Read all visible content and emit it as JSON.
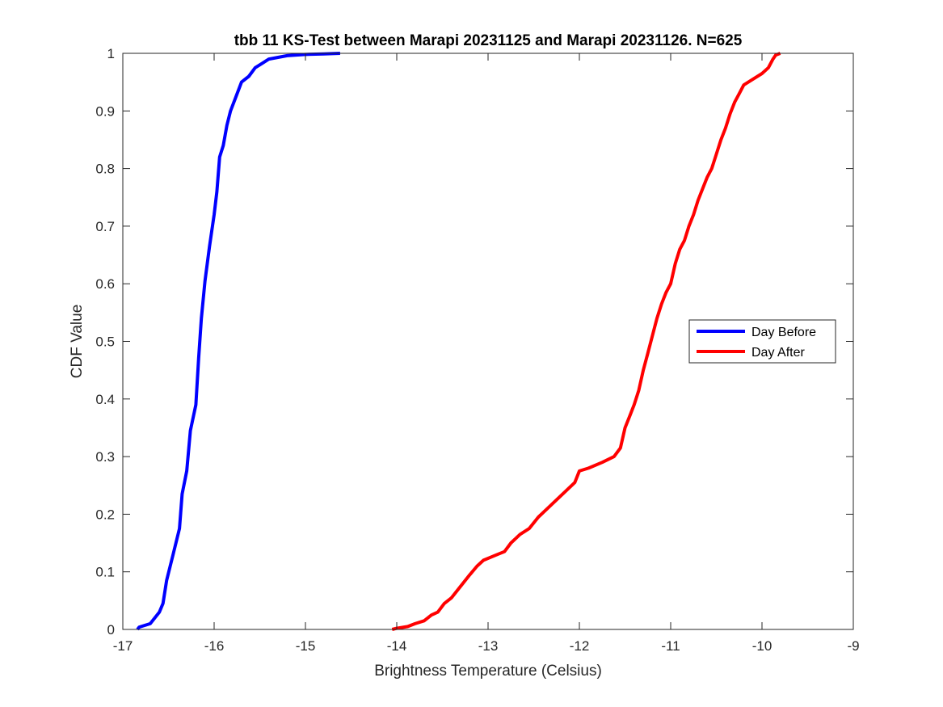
{
  "chart_data": {
    "type": "line",
    "title": "tbb 11 KS-Test between Marapi 20231125 and Marapi 20231126. N=625",
    "xlabel": "Brightness Temperature (Celsius)",
    "ylabel": "CDF Value",
    "xlim": [
      -17,
      -9
    ],
    "ylim": [
      0,
      1
    ],
    "xticks": [
      -17,
      -16,
      -15,
      -14,
      -13,
      -12,
      -11,
      -10,
      -9
    ],
    "yticks": [
      0,
      0.1,
      0.2,
      0.3,
      0.4,
      0.5,
      0.6,
      0.7,
      0.8,
      0.9,
      1
    ],
    "xtick_labels": [
      "-17",
      "-16",
      "-15",
      "-14",
      "-13",
      "-12",
      "-11",
      "-10",
      "-9"
    ],
    "ytick_labels": [
      "0",
      "0.1",
      "0.2",
      "0.3",
      "0.4",
      "0.5",
      "0.6",
      "0.7",
      "0.8",
      "0.9",
      "1"
    ],
    "grid": false,
    "legend_position": "center-right",
    "series": [
      {
        "name": "Day Before",
        "color": "#0000ff",
        "points": [
          [
            -16.84,
            0.0
          ],
          [
            -16.82,
            0.004
          ],
          [
            -16.7,
            0.01
          ],
          [
            -16.6,
            0.03
          ],
          [
            -16.56,
            0.045
          ],
          [
            -16.52,
            0.085
          ],
          [
            -16.45,
            0.13
          ],
          [
            -16.38,
            0.175
          ],
          [
            -16.35,
            0.235
          ],
          [
            -16.3,
            0.275
          ],
          [
            -16.26,
            0.345
          ],
          [
            -16.2,
            0.39
          ],
          [
            -16.17,
            0.47
          ],
          [
            -16.14,
            0.54
          ],
          [
            -16.1,
            0.605
          ],
          [
            -16.05,
            0.665
          ],
          [
            -16.0,
            0.72
          ],
          [
            -15.97,
            0.76
          ],
          [
            -15.94,
            0.82
          ],
          [
            -15.9,
            0.84
          ],
          [
            -15.86,
            0.875
          ],
          [
            -15.82,
            0.9
          ],
          [
            -15.76,
            0.925
          ],
          [
            -15.7,
            0.95
          ],
          [
            -15.62,
            0.96
          ],
          [
            -15.55,
            0.975
          ],
          [
            -15.48,
            0.982
          ],
          [
            -15.4,
            0.99
          ],
          [
            -15.2,
            0.996
          ],
          [
            -15.0,
            0.998
          ],
          [
            -14.8,
            0.999
          ],
          [
            -14.62,
            1.0
          ]
        ]
      },
      {
        "name": "Day After",
        "color": "#ff0000",
        "points": [
          [
            -14.05,
            0.0
          ],
          [
            -14.0,
            0.002
          ],
          [
            -13.88,
            0.005
          ],
          [
            -13.8,
            0.01
          ],
          [
            -13.7,
            0.015
          ],
          [
            -13.62,
            0.025
          ],
          [
            -13.55,
            0.03
          ],
          [
            -13.48,
            0.045
          ],
          [
            -13.4,
            0.055
          ],
          [
            -13.3,
            0.075
          ],
          [
            -13.2,
            0.095
          ],
          [
            -13.12,
            0.11
          ],
          [
            -13.05,
            0.12
          ],
          [
            -12.9,
            0.13
          ],
          [
            -12.82,
            0.135
          ],
          [
            -12.75,
            0.15
          ],
          [
            -12.65,
            0.165
          ],
          [
            -12.55,
            0.175
          ],
          [
            -12.45,
            0.195
          ],
          [
            -12.35,
            0.21
          ],
          [
            -12.25,
            0.225
          ],
          [
            -12.15,
            0.24
          ],
          [
            -12.05,
            0.255
          ],
          [
            -12.0,
            0.275
          ],
          [
            -11.9,
            0.28
          ],
          [
            -11.75,
            0.29
          ],
          [
            -11.62,
            0.3
          ],
          [
            -11.55,
            0.315
          ],
          [
            -11.5,
            0.35
          ],
          [
            -11.45,
            0.37
          ],
          [
            -11.4,
            0.39
          ],
          [
            -11.35,
            0.415
          ],
          [
            -11.3,
            0.45
          ],
          [
            -11.25,
            0.48
          ],
          [
            -11.2,
            0.51
          ],
          [
            -11.15,
            0.54
          ],
          [
            -11.1,
            0.565
          ],
          [
            -11.05,
            0.585
          ],
          [
            -11.0,
            0.6
          ],
          [
            -10.95,
            0.635
          ],
          [
            -10.9,
            0.66
          ],
          [
            -10.85,
            0.675
          ],
          [
            -10.8,
            0.7
          ],
          [
            -10.75,
            0.72
          ],
          [
            -10.7,
            0.745
          ],
          [
            -10.65,
            0.765
          ],
          [
            -10.6,
            0.785
          ],
          [
            -10.55,
            0.8
          ],
          [
            -10.5,
            0.825
          ],
          [
            -10.45,
            0.85
          ],
          [
            -10.4,
            0.87
          ],
          [
            -10.35,
            0.895
          ],
          [
            -10.3,
            0.915
          ],
          [
            -10.25,
            0.93
          ],
          [
            -10.2,
            0.945
          ],
          [
            -10.1,
            0.955
          ],
          [
            -10.0,
            0.965
          ],
          [
            -9.93,
            0.975
          ],
          [
            -9.88,
            0.99
          ],
          [
            -9.85,
            0.997
          ],
          [
            -9.8,
            1.0
          ]
        ]
      }
    ]
  }
}
